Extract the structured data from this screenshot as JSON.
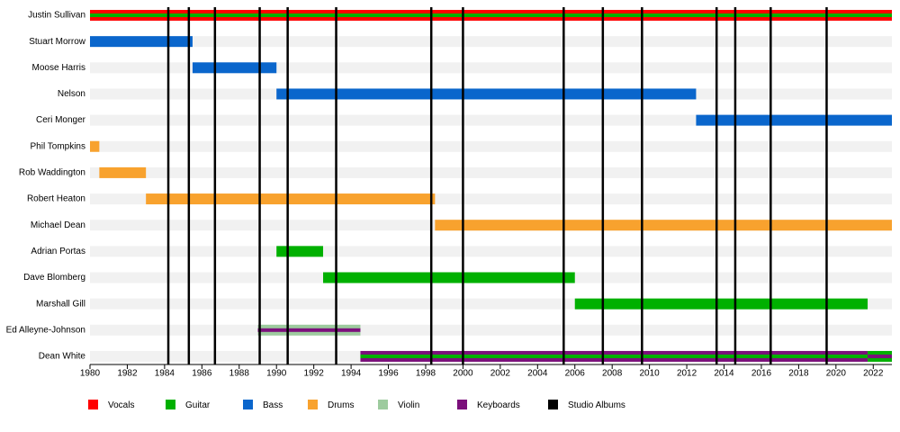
{
  "chart_data": {
    "type": "timeline",
    "xlim": [
      1980,
      2023
    ],
    "xticks": [
      1980,
      1982,
      1984,
      1986,
      1988,
      1990,
      1992,
      1994,
      1996,
      1998,
      2000,
      2002,
      2004,
      2006,
      2008,
      2010,
      2012,
      2014,
      2016,
      2018,
      2020,
      2022
    ],
    "roles": [
      {
        "name": "Vocals",
        "color": "#ff0000"
      },
      {
        "name": "Guitar",
        "color": "#00b000"
      },
      {
        "name": "Bass",
        "color": "#0a66cc"
      },
      {
        "name": "Drums",
        "color": "#f8a22e"
      },
      {
        "name": "Violin",
        "color": "#9dcb9e"
      },
      {
        "name": "Keyboards",
        "color": "#7b0f7b"
      }
    ],
    "albums": {
      "name": "Studio Albums",
      "color": "#000000",
      "values": [
        1984.2,
        1985.3,
        1986.7,
        1989.1,
        1990.6,
        1993.2,
        1998.3,
        2000.0,
        2005.4,
        2007.5,
        2009.6,
        2013.6,
        2014.6,
        2016.5,
        2019.5
      ]
    },
    "members": [
      {
        "name": "Justin Sullivan",
        "bars": [
          {
            "start": 1980,
            "end": 2023,
            "roles": [
              "Vocals",
              "Guitar"
            ]
          }
        ]
      },
      {
        "name": "Stuart Morrow",
        "bars": [
          {
            "start": 1980,
            "end": 1985.5,
            "roles": [
              "Bass"
            ]
          }
        ]
      },
      {
        "name": "Moose Harris",
        "bars": [
          {
            "start": 1985.5,
            "end": 1990,
            "roles": [
              "Bass"
            ]
          }
        ]
      },
      {
        "name": "Nelson",
        "bars": [
          {
            "start": 1990,
            "end": 2012.5,
            "roles": [
              "Bass"
            ]
          }
        ]
      },
      {
        "name": "Ceri Monger",
        "bars": [
          {
            "start": 2012.5,
            "end": 2023,
            "roles": [
              "Bass"
            ]
          }
        ]
      },
      {
        "name": "Phil Tompkins",
        "bars": [
          {
            "start": 1980,
            "end": 1980.5,
            "roles": [
              "Drums"
            ]
          }
        ]
      },
      {
        "name": "Rob Waddington",
        "bars": [
          {
            "start": 1980.5,
            "end": 1983,
            "roles": [
              "Drums"
            ]
          }
        ]
      },
      {
        "name": "Robert Heaton",
        "bars": [
          {
            "start": 1983,
            "end": 1998.5,
            "roles": [
              "Drums"
            ]
          }
        ]
      },
      {
        "name": "Michael Dean",
        "bars": [
          {
            "start": 1998.5,
            "end": 2023,
            "roles": [
              "Drums"
            ]
          }
        ]
      },
      {
        "name": "Adrian Portas",
        "bars": [
          {
            "start": 1990,
            "end": 1992.5,
            "roles": [
              "Guitar"
            ]
          }
        ]
      },
      {
        "name": "Dave Blomberg",
        "bars": [
          {
            "start": 1992.5,
            "end": 2006,
            "roles": [
              "Guitar"
            ]
          }
        ]
      },
      {
        "name": "Marshall Gill",
        "bars": [
          {
            "start": 2006,
            "end": 2021.7,
            "roles": [
              "Guitar"
            ]
          }
        ]
      },
      {
        "name": "Ed Alleyne-Johnson",
        "bars": [
          {
            "start": 1989,
            "end": 1994.5,
            "roles": [
              "Violin",
              "Keyboards"
            ]
          }
        ]
      },
      {
        "name": "Dean White",
        "bars": [
          {
            "start": 1994.5,
            "end": 2021.7,
            "roles": [
              "Keyboards",
              "Guitar"
            ]
          },
          {
            "start": 2021.7,
            "end": 2023,
            "roles": [
              "Guitar",
              "Keyboards"
            ]
          }
        ]
      }
    ]
  }
}
